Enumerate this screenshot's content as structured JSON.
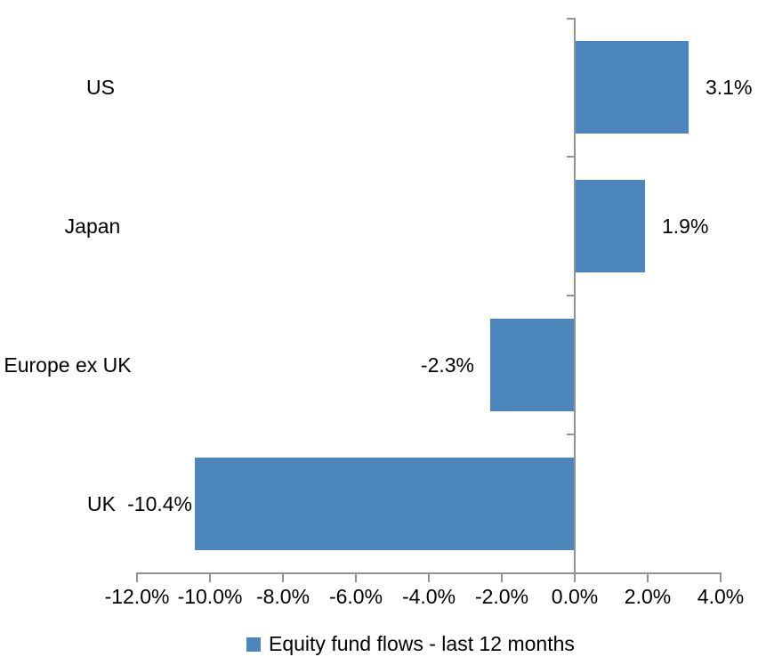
{
  "chart_data": {
    "type": "bar",
    "orientation": "horizontal",
    "title": "",
    "categories": [
      "US",
      "Japan",
      "Europe ex UK",
      "UK"
    ],
    "series": [
      {
        "name": "Equity fund flows - last 12 months",
        "values": [
          3.1,
          1.9,
          -2.3,
          -10.4
        ]
      }
    ],
    "data_labels": [
      "3.1%",
      "1.9%",
      "-2.3%",
      "-10.4%"
    ],
    "x_axis": {
      "tick_labels": [
        "-12.0%",
        "-10.0%",
        "-8.0%",
        "-6.0%",
        "-4.0%",
        "-2.0%",
        "0.0%",
        "2.0%",
        "4.0%"
      ],
      "tick_values": [
        -12,
        -10,
        -8,
        -6,
        -4,
        -2,
        0,
        2,
        4
      ],
      "range": [
        -12,
        4
      ]
    },
    "legend": {
      "label": "Equity fund flows - last 12 months",
      "position": "bottom",
      "marker": "square"
    },
    "colors": {
      "bar": "#4D86BD",
      "axis": "#929292",
      "text": "#000000",
      "background": "#FFFFFF"
    },
    "grid": false
  }
}
